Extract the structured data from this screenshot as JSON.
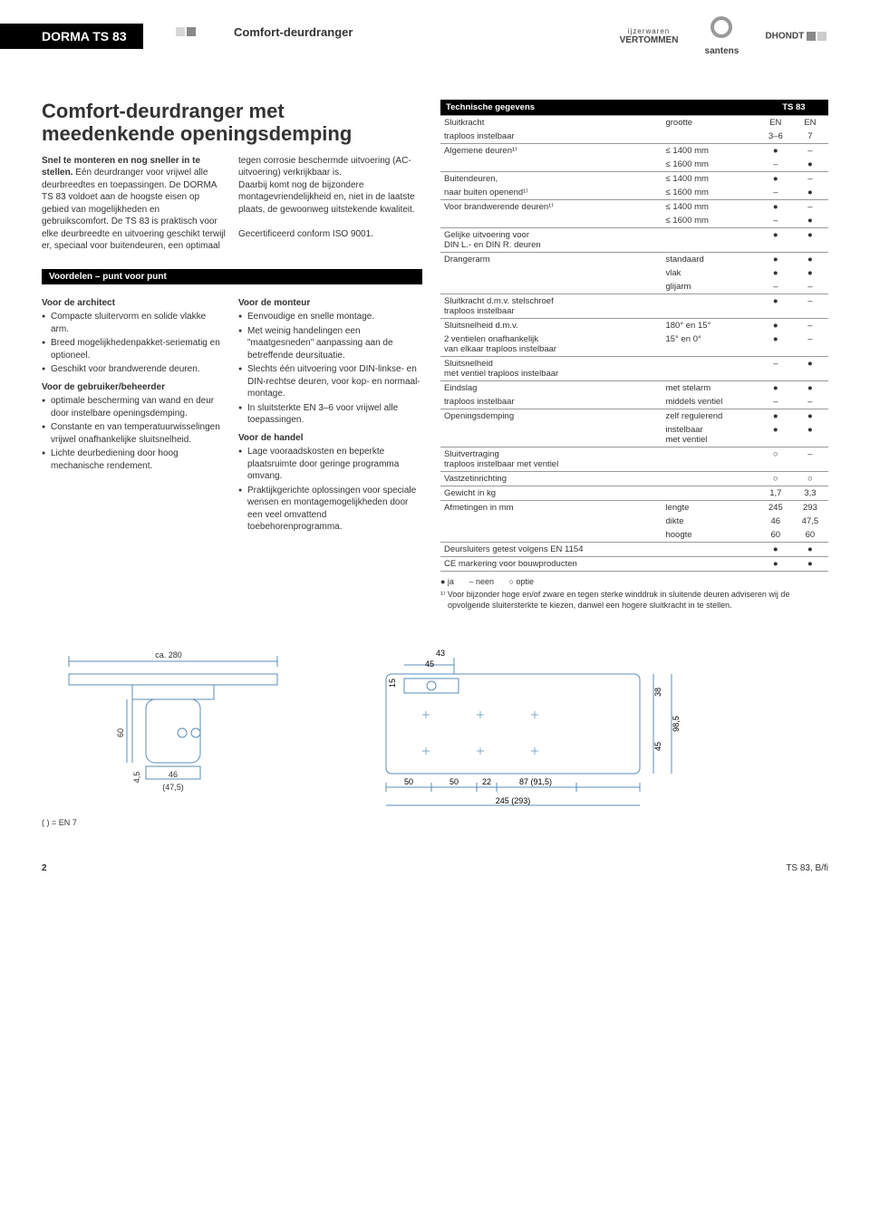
{
  "header": {
    "bar": "DORMA TS 83",
    "sub": "Comfort-deurdranger",
    "logo1_a": "ijzerwaren",
    "logo1_b": "VERTOMMEN",
    "logo2": "santens",
    "logo3": "DHONDT"
  },
  "title": "Comfort-deurdranger met meedenkende openingsdemping",
  "intro_left": "Snel te monteren en nog sneller in te stellen. Eén deurdranger voor vrijwel alle deurbreedtes en toepassingen. De DORMA TS 83 voldoet aan de hoogste eisen op gebied van mogelijkheden en gebruikscomfort. De TS 83 is praktisch voor elke deurbreedte en uitvoering geschikt terwijl er, speciaal voor buitendeuren, een optimaal",
  "intro_right": "tegen corrosie beschermde uitvoering (AC-uitvoering) verkrijkbaar is.\nDaarbij komt nog de bijzondere montagevriendelijkheid en, niet in de laatste plaats, de gewoonweg uitstekende kwaliteit.\n\nGecertificeerd conform ISO 9001.",
  "voordelen_title": "Voordelen – punt voor punt",
  "arch_h": "Voor de architect",
  "arch": [
    "Compacte sluitervorm en solide vlakke arm.",
    "Breed mogelijkhedenpakket-seriematig en optioneel.",
    "Geschikt voor brandwerende deuren."
  ],
  "gebr_h": "Voor de gebruiker/beheerder",
  "gebr": [
    "optimale bescherming van wand en deur door instelbare openingsdemping.",
    "Constante en van temperatuurwisselingen vrijwel onafhankelijke sluitsnelheid.",
    "Lichte deurbediening door hoog mechanische rendement."
  ],
  "mont_h": "Voor de monteur",
  "mont": [
    "Eenvoudige en snelle montage.",
    "Met weinig handelingen een \"maatgesneden\" aanpassing aan de betreffende deursituatie.",
    "Slechts één uitvoering voor DIN-linkse- en DIN-rechtse deuren, voor kop- en normaal-montage.",
    "In sluitsterkte EN 3–6 voor vrijwel alle toepassingen."
  ],
  "hand_h": "Voor de handel",
  "hand": [
    "Lage vooraadskosten en beperkte plaatsruimte door geringe programma omvang.",
    "Praktijkgerichte oplossingen voor speciale wensen en montagemogelijkheden door een veel omvattend toebehorenprogramma."
  ],
  "table": {
    "header": [
      "Technische gegevens",
      "",
      "TS 83",
      ""
    ],
    "en_row": {
      "label": "Sluitkracht",
      "sub": "traploos instelbaar",
      "v": "grootte",
      "c1": "EN",
      "c2": "EN",
      "d1": "3–6",
      "d2": "7"
    },
    "rows": [
      {
        "a": "Algemene deuren¹⁾",
        "b": "≤ 1400 mm",
        "c1": "●",
        "c2": "–"
      },
      {
        "a": "",
        "b": "≤ 1600 mm",
        "c1": "–",
        "c2": "●"
      },
      {
        "a": "Buitendeuren,",
        "b": "≤ 1400 mm",
        "c1": "●",
        "c2": "–"
      },
      {
        "a": "naar buiten openend¹⁾",
        "b": "≤ 1600 mm",
        "c1": "–",
        "c2": "●"
      },
      {
        "a": "Voor brandwerende deuren¹⁾",
        "b": "≤ 1400 mm",
        "c1": "●",
        "c2": "–"
      },
      {
        "a": "",
        "b": "≤ 1600 mm",
        "c1": "–",
        "c2": "●"
      },
      {
        "a": "Gelijke uitvoering voor\nDIN L.- en DIN R. deuren",
        "b": "",
        "c1": "●",
        "c2": "●"
      },
      {
        "a": "Drangerarm",
        "b": "standaard",
        "c1": "●",
        "c2": "●"
      },
      {
        "a": "",
        "b": "vlak",
        "c1": "●",
        "c2": "●"
      },
      {
        "a": "",
        "b": "glijarm",
        "c1": "–",
        "c2": "–"
      },
      {
        "a": "Sluitkracht d.m.v. stelschroef\ntraploos instelbaar",
        "b": "",
        "c1": "●",
        "c2": "–"
      },
      {
        "a": "Sluitsnelheid d.m.v.",
        "b": "180° en 15°",
        "c1": "●",
        "c2": "–"
      },
      {
        "a": "2 ventielen onafhankelijk\nvan elkaar traploos instelbaar",
        "b": "15° en   0°",
        "c1": "●",
        "c2": "–"
      },
      {
        "a": "Sluitsnelheid\nmet ventiel traploos instelbaar",
        "b": "",
        "c1": "–",
        "c2": "●"
      },
      {
        "a": "Eindslag",
        "b": "met stelarm",
        "c1": "●",
        "c2": "●"
      },
      {
        "a": "traploos instelbaar",
        "b": "middels ventiel",
        "c1": "–",
        "c2": "–"
      },
      {
        "a": "Openingsdemping",
        "b": "zelf regulerend",
        "c1": "●",
        "c2": "●"
      },
      {
        "a": "",
        "b": "instelbaar\nmet ventiel",
        "c1": "●",
        "c2": "●"
      },
      {
        "a": "Sluitvertraging\ntraploos instelbaar met ventiel",
        "b": "",
        "c1": "○",
        "c2": "–"
      },
      {
        "a": "Vastzetinrichting",
        "b": "",
        "c1": "○",
        "c2": "○"
      },
      {
        "a": "Gewicht in kg",
        "b": "",
        "c1": "1,7",
        "c2": "3,3"
      },
      {
        "a": "Afmetingen in mm",
        "b": "lengte",
        "c1": "245",
        "c2": "293"
      },
      {
        "a": "",
        "b": "dikte",
        "c1": "46",
        "c2": "47,5"
      },
      {
        "a": "",
        "b": "hoogte",
        "c1": "60",
        "c2": "60"
      },
      {
        "a": "Deursluiters getest volgens EN 1154",
        "b": "",
        "c1": "●",
        "c2": "●"
      },
      {
        "a": "CE markering voor bouwproducten",
        "b": "",
        "c1": "●",
        "c2": "●"
      }
    ]
  },
  "legend": {
    "ja": "● ja",
    "neen": "– neen",
    "optie": "○ optie"
  },
  "footnote": "¹⁾ Voor bijzonder hoge en/of zware en tegen sterke winddruk in sluitende deuren adviseren wij de opvolgende sluitersterkte te kiezen, danwel een hogere sluitkracht in te stellen.",
  "diag": {
    "d1_top": "ca. 280",
    "d1_h": "60",
    "d1_w": "46",
    "d1_w2": "(47,5)",
    "d1_b": "4,5",
    "d2_top": "43",
    "d2_top2": "45",
    "d2_15": "15",
    "d2_38": "38",
    "d2_45": "45",
    "d2_985": "98,5",
    "d2_50a": "50",
    "d2_50b": "50",
    "d2_22": "22",
    "d2_87": "87 (91,5)",
    "d2_245": "245 (293)"
  },
  "en7": "( ) = EN 7",
  "pagenum": "2",
  "docref": "TS 83, B/fi"
}
